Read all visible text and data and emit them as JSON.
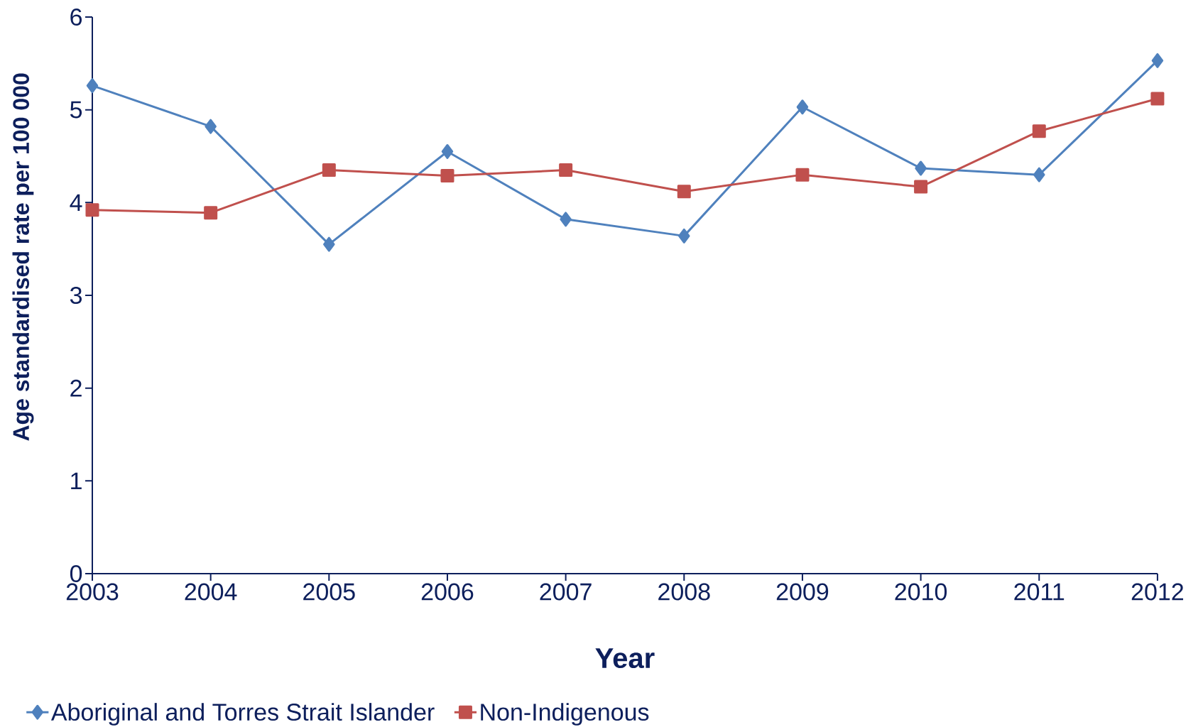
{
  "chart_data": {
    "type": "line",
    "xlabel": "Year",
    "ylabel": "Age standardised rate per 100 000",
    "x": [
      2003,
      2004,
      2005,
      2006,
      2007,
      2008,
      2009,
      2010,
      2011,
      2012
    ],
    "xlim": [
      2003,
      2012
    ],
    "xticks": [
      2003,
      2004,
      2005,
      2006,
      2007,
      2008,
      2009,
      2010,
      2011,
      2012
    ],
    "ylim": [
      0,
      6
    ],
    "yticks": [
      0,
      1,
      2,
      3,
      4,
      5,
      6
    ],
    "grid": false,
    "legend": "bottom",
    "series": [
      {
        "name": "Aboriginal and Torres Strait Islander",
        "color": "#4f81bd",
        "marker": "diamond",
        "values": [
          5.26,
          4.82,
          3.55,
          4.55,
          3.82,
          3.64,
          5.03,
          4.37,
          4.3,
          5.53
        ]
      },
      {
        "name": "Non-Indigenous",
        "color": "#c0504d",
        "marker": "square",
        "values": [
          3.92,
          3.89,
          4.35,
          4.29,
          4.35,
          4.12,
          4.3,
          4.17,
          4.77,
          5.12
        ]
      }
    ]
  }
}
